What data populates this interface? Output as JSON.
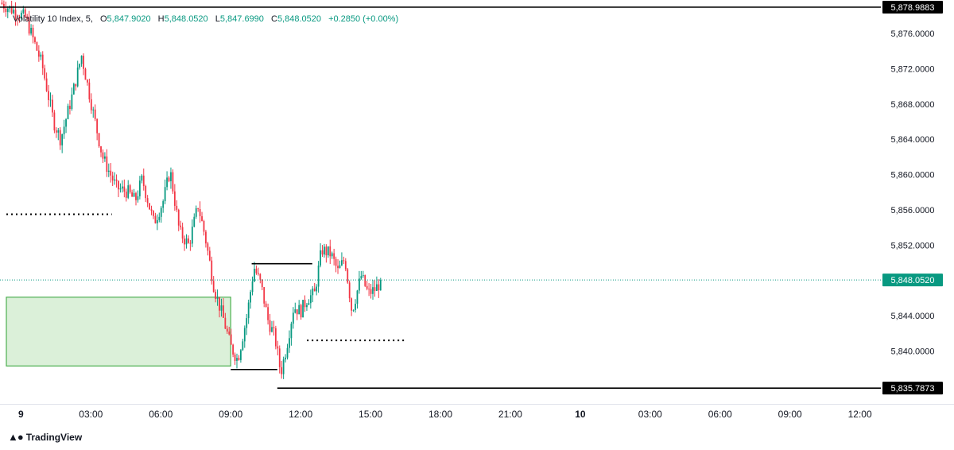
{
  "legend": {
    "symbol": "Volatility 10 Index, 5,",
    "open_label": "O",
    "open": "5,847.9020",
    "high_label": "H",
    "high": "5,848.0520",
    "low_label": "L",
    "low": "5,847.6990",
    "close_label": "C",
    "close": "5,848.0520",
    "change": "+0.2850 (+0.00%)"
  },
  "branding": {
    "text": "TradingView",
    "icon": "tradingview-logo-icon"
  },
  "colors": {
    "up": "#089981",
    "down": "#f23645",
    "price_line": "#089981",
    "zone_fill": "#dbf0d9",
    "zone_border": "#4caf50",
    "level_line": "#000000"
  },
  "chart_data": {
    "type": "candlestick",
    "ylim": [
      5834.0,
      5879.8
    ],
    "y_ticks": [
      "5,876.0000",
      "5,872.0000",
      "5,868.0000",
      "5,864.0000",
      "5,860.0000",
      "5,856.0000",
      "5,852.0000",
      "5,848.0000",
      "5,844.0000",
      "5,840.0000"
    ],
    "y_tick_values": [
      5876,
      5872,
      5868,
      5864,
      5860,
      5856,
      5852,
      5848,
      5844,
      5840
    ],
    "x_ticks": [
      "9",
      "03:00",
      "06:00",
      "09:00",
      "12:00",
      "15:00",
      "18:00",
      "21:00",
      "10",
      "03:00",
      "06:00",
      "09:00",
      "12:00"
    ],
    "x_tick_hours": [
      0,
      3,
      6,
      9,
      12,
      15,
      18,
      21,
      24,
      27,
      30,
      33,
      36
    ],
    "x_tick_bold": [
      true,
      false,
      false,
      false,
      false,
      false,
      false,
      false,
      true,
      false,
      false,
      false,
      false
    ],
    "x_range_hours": [
      -0.9,
      36.9
    ],
    "price_labels": [
      {
        "text": "5,878.9883",
        "value": 5878.9883,
        "style": "dark"
      },
      {
        "text": "5,848.0520",
        "value": 5848.052,
        "style": "current"
      },
      {
        "text": "5,835.7873",
        "value": 5835.7873,
        "style": "dark"
      }
    ],
    "current_price": 5848.052,
    "close_path": [
      [
        -0.9,
        5879.5
      ],
      [
        0.2,
        5877.8
      ],
      [
        0.9,
        5872.5
      ],
      [
        1.4,
        5866.0
      ],
      [
        1.7,
        5864.0
      ],
      [
        2.2,
        5869.0
      ],
      [
        2.6,
        5873.5
      ],
      [
        3.1,
        5867.0
      ],
      [
        3.5,
        5862.0
      ],
      [
        4.1,
        5858.5
      ],
      [
        4.6,
        5858.0
      ],
      [
        4.9,
        5857.0
      ],
      [
        5.2,
        5859.5
      ],
      [
        5.7,
        5854.5
      ],
      [
        6.1,
        5857.0
      ],
      [
        6.4,
        5860.5
      ],
      [
        6.8,
        5853.5
      ],
      [
        7.2,
        5852.0
      ],
      [
        7.6,
        5856.5
      ],
      [
        7.9,
        5853.0
      ],
      [
        8.3,
        5847.0
      ],
      [
        8.7,
        5843.5
      ],
      [
        9.0,
        5840.5
      ],
      [
        9.3,
        5839.0
      ],
      [
        9.7,
        5844.0
      ],
      [
        10.0,
        5849.5
      ],
      [
        10.3,
        5847.5
      ],
      [
        10.6,
        5843.5
      ],
      [
        10.9,
        5841.5
      ],
      [
        11.15,
        5837.5
      ],
      [
        11.4,
        5840.5
      ],
      [
        11.7,
        5845.0
      ],
      [
        12.0,
        5844.5
      ],
      [
        12.3,
        5846.0
      ],
      [
        12.6,
        5846.5
      ],
      [
        12.9,
        5851.5
      ],
      [
        13.3,
        5851.0
      ],
      [
        13.6,
        5849.0
      ],
      [
        13.9,
        5850.5
      ],
      [
        14.2,
        5844.5
      ],
      [
        14.6,
        5848.5
      ],
      [
        14.9,
        5846.5
      ],
      [
        15.2,
        5847.0
      ],
      [
        15.5,
        5848.05
      ]
    ],
    "annotations": {
      "top_resistance": {
        "value": 5878.9883,
        "from_hour": -0.9,
        "to_hour": 36.9
      },
      "bottom_support": {
        "value": 5835.7873,
        "from_hour": 11.0,
        "to_hour": 36.9
      },
      "left_dotted": {
        "value": 5855.5,
        "from_hour": -0.9,
        "to_hour": 3.9
      },
      "right_dotted": {
        "value": 5841.2,
        "from_hour": 12.0,
        "to_hour": 16.5
      },
      "swing_high_line": {
        "value": 5849.9,
        "from_hour": 9.9,
        "to_hour": 12.5
      },
      "swing_low_line": {
        "value": 5837.9,
        "from_hour": 9.0,
        "to_hour": 11.0
      },
      "demand_zone": {
        "top": 5846.1,
        "bottom": 5838.3,
        "from_hour": -0.9,
        "to_hour": 9.0
      }
    }
  }
}
